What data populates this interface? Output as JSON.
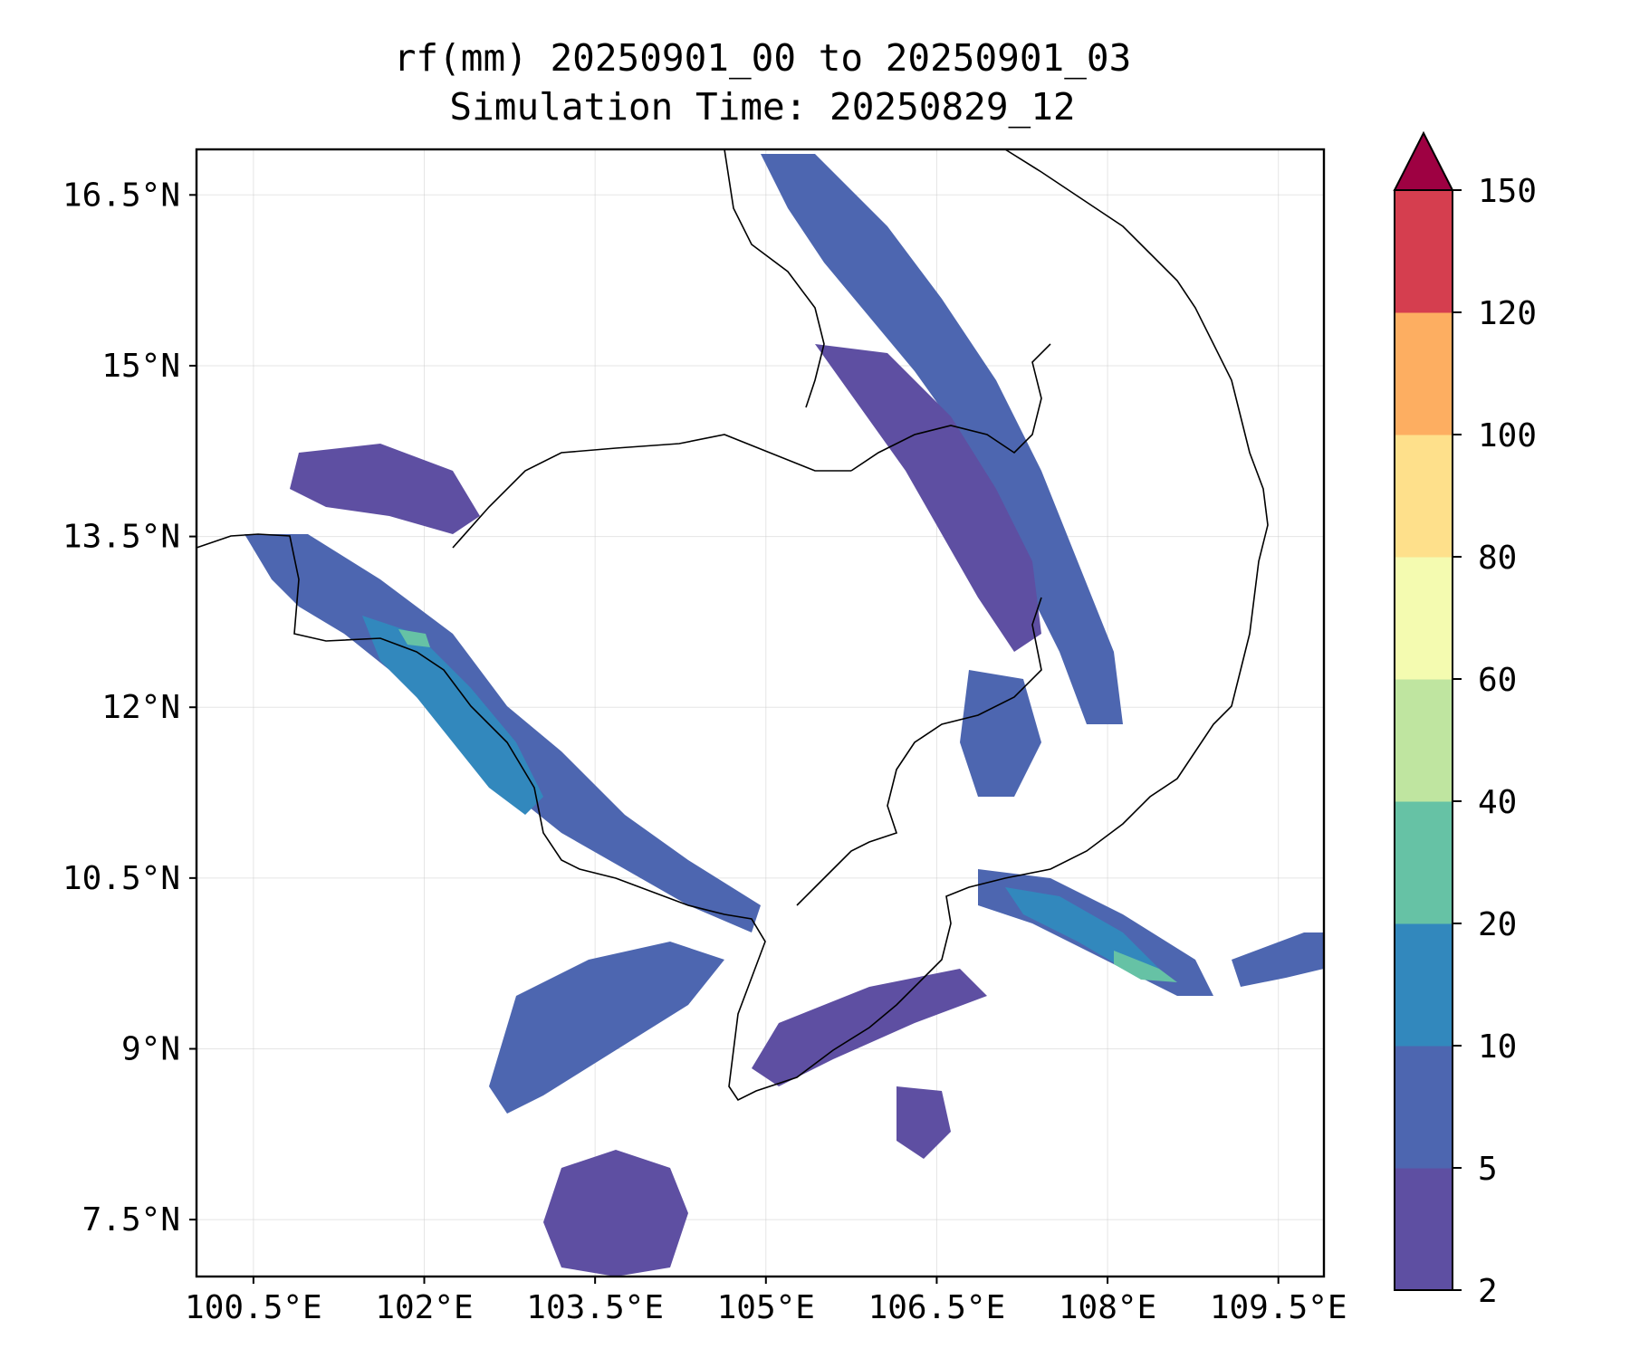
{
  "title": {
    "line1": "rf(mm) 20250901_00 to 20250901_03",
    "line2": "Simulation Time: 20250829_12"
  },
  "map": {
    "lon_range": [
      100.0,
      109.9
    ],
    "lat_range": [
      7.0,
      16.9
    ],
    "x_ticks": [
      {
        "value": 100.5,
        "label": "100.5°E"
      },
      {
        "value": 102.0,
        "label": "102°E"
      },
      {
        "value": 103.5,
        "label": "103.5°E"
      },
      {
        "value": 105.0,
        "label": "105°E"
      },
      {
        "value": 106.5,
        "label": "106.5°E"
      },
      {
        "value": 108.0,
        "label": "108°E"
      },
      {
        "value": 109.5,
        "label": "109.5°E"
      }
    ],
    "y_ticks": [
      {
        "value": 16.5,
        "label": "16.5°N"
      },
      {
        "value": 15.0,
        "label": "15°N"
      },
      {
        "value": 13.5,
        "label": "13.5°N"
      },
      {
        "value": 12.0,
        "label": "12°N"
      },
      {
        "value": 10.5,
        "label": "10.5°N"
      },
      {
        "value": 9.0,
        "label": "9°N"
      },
      {
        "value": 7.5,
        "label": "7.5°N"
      }
    ],
    "grid": true,
    "gridlines_lon": [
      100.5,
      102.0,
      103.5,
      105.0,
      106.5,
      108.0,
      109.5
    ],
    "gridlines_lat": [
      7.5,
      9.0,
      10.5,
      12.0,
      13.5,
      15.0,
      16.5
    ]
  },
  "colorbar": {
    "levels": [
      2,
      5,
      10,
      20,
      40,
      60,
      80,
      100,
      120,
      150
    ],
    "labels": [
      "2",
      "5",
      "10",
      "20",
      "40",
      "60",
      "80",
      "100",
      "120",
      "150"
    ],
    "colors": [
      "#5e4fa2",
      "#4d66b0",
      "#3288bd",
      "#66c2a5",
      "#bfe5a0",
      "#f4fbb0",
      "#fee08b",
      "#fdae61",
      "#d53e4f"
    ],
    "extend_color": "#9e0142",
    "extend": "max"
  }
}
